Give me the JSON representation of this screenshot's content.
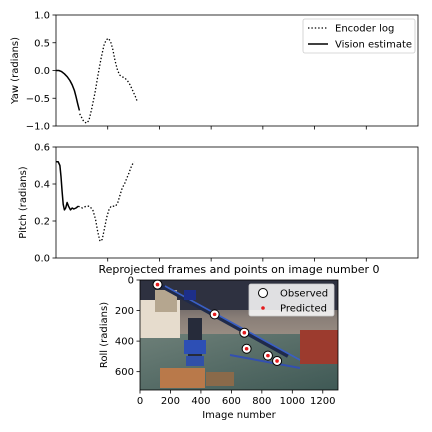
{
  "chart_data": [
    {
      "type": "line",
      "ylabel": "Yaw (radians)",
      "xlim": [
        0,
        1300
      ],
      "ylim": [
        -1.0,
        1.0
      ],
      "yticks": [
        "1.0",
        "0.5",
        "0.0",
        "−0.5",
        "−1.0"
      ],
      "legend_position": "top-right",
      "series": [
        {
          "name": "Encoder log",
          "style": "dotted",
          "color": "#000000",
          "points": [
            [
              85,
              -0.78
            ],
            [
              100,
              -0.92
            ],
            [
              110,
              -0.95
            ],
            [
              118,
              -0.9
            ],
            [
              128,
              -0.7
            ],
            [
              140,
              -0.4
            ],
            [
              152,
              -0.05
            ],
            [
              162,
              0.22
            ],
            [
              172,
              0.45
            ],
            [
              180,
              0.55
            ],
            [
              188,
              0.58
            ],
            [
              196,
              0.52
            ],
            [
              204,
              0.38
            ],
            [
              212,
              0.18
            ],
            [
              220,
              0.02
            ],
            [
              228,
              -0.08
            ],
            [
              236,
              -0.11
            ],
            [
              246,
              -0.13
            ],
            [
              256,
              -0.18
            ],
            [
              266,
              -0.26
            ],
            [
              276,
              -0.37
            ],
            [
              286,
              -0.48
            ],
            [
              292,
              -0.56
            ]
          ]
        },
        {
          "name": "Vision estimate",
          "style": "solid",
          "color": "#000000",
          "points": [
            [
              0,
              0.0
            ],
            [
              10,
              0.0
            ],
            [
              20,
              -0.02
            ],
            [
              30,
              -0.06
            ],
            [
              40,
              -0.11
            ],
            [
              50,
              -0.18
            ],
            [
              58,
              -0.26
            ],
            [
              66,
              -0.36
            ],
            [
              72,
              -0.47
            ],
            [
              78,
              -0.6
            ],
            [
              84,
              -0.72
            ]
          ]
        }
      ]
    },
    {
      "type": "line",
      "ylabel": "Pitch (radians)",
      "xlim": [
        0,
        1300
      ],
      "ylim": [
        0.0,
        0.6
      ],
      "yticks": [
        "0.6",
        "0.4",
        "0.2",
        "0.0"
      ],
      "series": [
        {
          "name": "",
          "style": "solid",
          "color": "#000000",
          "points": [
            [
              0,
              0.52
            ],
            [
              8,
              0.52
            ],
            [
              14,
              0.5
            ],
            [
              18,
              0.44
            ],
            [
              22,
              0.36
            ],
            [
              26,
              0.29
            ],
            [
              30,
              0.26
            ],
            [
              35,
              0.27
            ],
            [
              40,
              0.3
            ],
            [
              45,
              0.28
            ],
            [
              52,
              0.26
            ],
            [
              58,
              0.27
            ],
            [
              64,
              0.265
            ],
            [
              72,
              0.27
            ],
            [
              80,
              0.28
            ]
          ]
        },
        {
          "name": "",
          "style": "dotted",
          "color": "#000000",
          "points": [
            [
              80,
              0.28
            ],
            [
              95,
              0.27
            ],
            [
              108,
              0.28
            ],
            [
              120,
              0.28
            ],
            [
              132,
              0.26
            ],
            [
              142,
              0.21
            ],
            [
              150,
              0.14
            ],
            [
              158,
              0.09
            ],
            [
              166,
              0.1
            ],
            [
              174,
              0.16
            ],
            [
              182,
              0.22
            ],
            [
              190,
              0.26
            ],
            [
              198,
              0.28
            ],
            [
              206,
              0.28
            ],
            [
              214,
              0.28
            ],
            [
              222,
              0.3
            ],
            [
              230,
              0.34
            ],
            [
              238,
              0.38
            ],
            [
              246,
              0.4
            ],
            [
              254,
              0.43
            ],
            [
              262,
              0.46
            ],
            [
              272,
              0.5
            ],
            [
              280,
              0.52
            ]
          ]
        }
      ]
    },
    {
      "type": "scatter",
      "title": "Reprojected frames and points on image number 0",
      "xlabel": "Image number",
      "ylabel": "Roll (radians)",
      "xlim": [
        0,
        1300
      ],
      "ylim": [
        720,
        0
      ],
      "xticks": [
        "0",
        "200",
        "400",
        "600",
        "800",
        "1000",
        "1200"
      ],
      "yticks": [
        "0",
        "200",
        "400",
        "600"
      ],
      "legend_position": "top-right",
      "series": [
        {
          "name": "Observed",
          "marker": "open-circle",
          "color": "#000000",
          "points": [
            [
              115,
              30
            ],
            [
              490,
              225
            ],
            [
              685,
              345
            ],
            [
              700,
              450
            ],
            [
              840,
              495
            ],
            [
              900,
              530
            ]
          ]
        },
        {
          "name": "Predicted",
          "marker": "dot",
          "color": "#e41a1c",
          "points": [
            [
              115,
              30
            ],
            [
              490,
              225
            ],
            [
              685,
              345
            ],
            [
              700,
              450
            ],
            [
              840,
              495
            ],
            [
              900,
              530
            ]
          ]
        }
      ]
    }
  ]
}
